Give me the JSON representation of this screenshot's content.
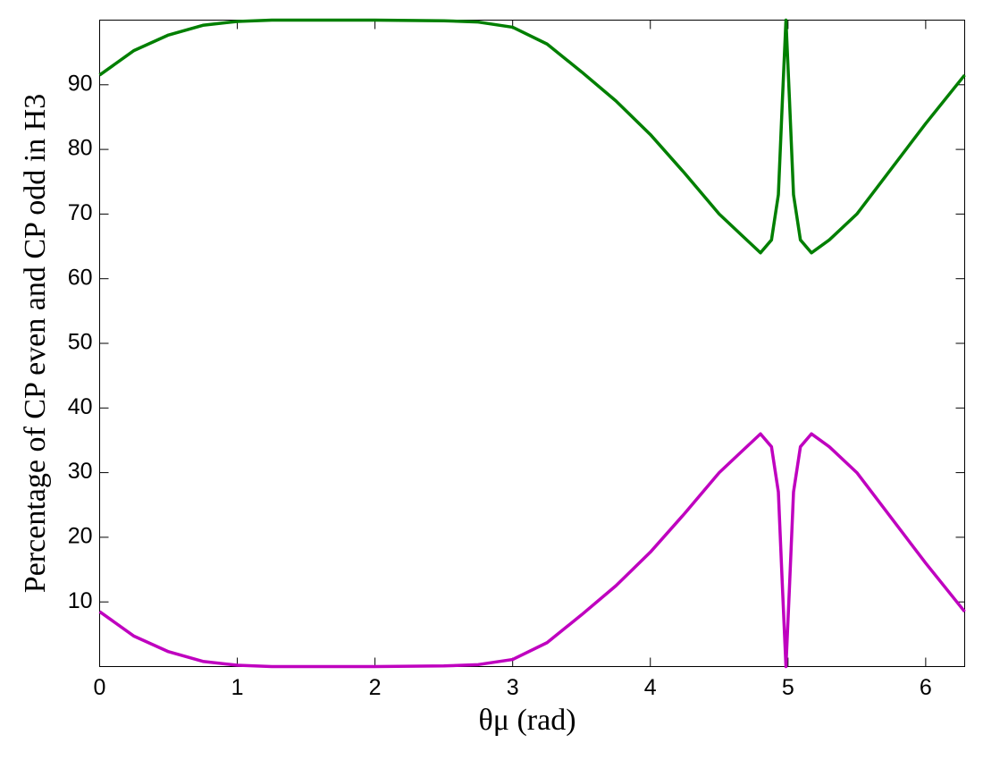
{
  "chart_data": {
    "type": "line",
    "xlabel": "θμ (rad)",
    "ylabel": "Percentage of CP even and CP odd in H3",
    "x": [
      0,
      0.25,
      0.5,
      0.75,
      1,
      1.25,
      1.5,
      2,
      2.5,
      2.75,
      3,
      3.25,
      3.5,
      3.75,
      4,
      4.25,
      4.5,
      4.65,
      4.8,
      4.88,
      4.93,
      4.96,
      4.985,
      5.01,
      5.04,
      5.09,
      5.17,
      5.3,
      5.5,
      5.75,
      6,
      6.283
    ],
    "series": [
      {
        "color": "#007f00",
        "values": [
          91.5,
          95.3,
          97.7,
          99.2,
          99.8,
          100,
          100,
          100,
          99.9,
          99.7,
          98.9,
          96.3,
          92,
          87.5,
          82.3,
          76.3,
          70,
          67,
          64,
          66,
          73,
          88,
          100,
          88,
          73,
          66,
          64,
          66,
          70,
          77,
          84,
          91.5
        ]
      },
      {
        "color": "#bf00bf",
        "values": [
          8.5,
          4.7,
          2.3,
          0.8,
          0.2,
          0,
          0,
          0,
          0.1,
          0.3,
          1.1,
          3.7,
          8,
          12.5,
          17.7,
          23.7,
          30,
          33,
          36,
          34,
          27,
          12,
          0,
          12,
          27,
          34,
          36,
          34,
          30,
          23,
          16,
          8.5
        ]
      }
    ],
    "xlim": [
      0,
      6.2832
    ],
    "xticks": [
      0,
      1,
      2,
      3,
      4,
      5,
      6
    ],
    "ylim": [
      0,
      100
    ],
    "yticks": [
      10,
      20,
      30,
      40,
      50,
      60,
      70,
      80,
      90
    ]
  }
}
